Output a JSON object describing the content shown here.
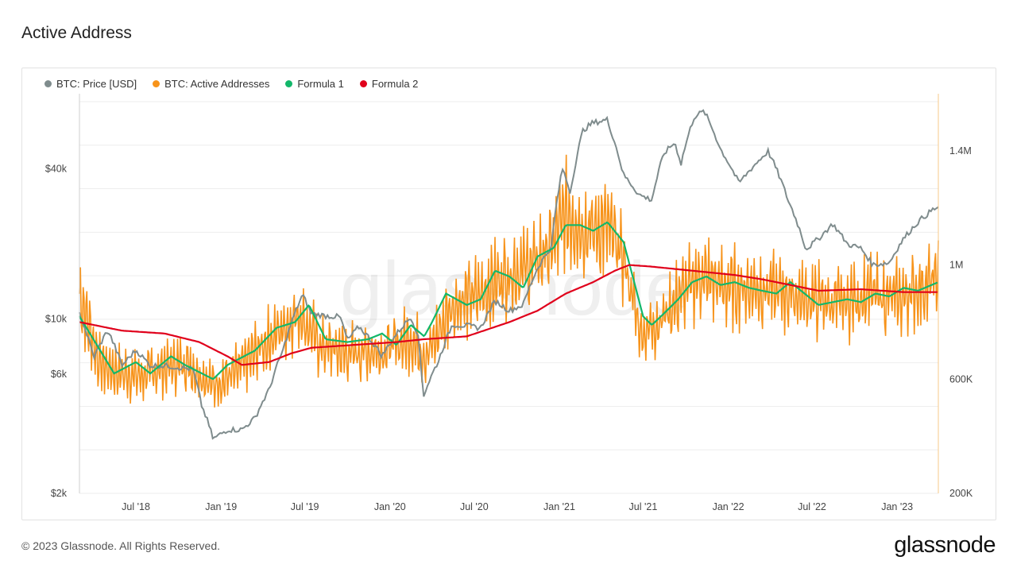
{
  "page": {
    "title": "Active Address",
    "footer": "© 2023 Glassnode. All Rights Reserved.",
    "brand": "glassnode",
    "watermark": "glassnode"
  },
  "colors": {
    "price": "#7f8c8d",
    "active": "#f7931a",
    "formula1": "#12b76a",
    "formula2": "#e0001b",
    "grid": "#eeeeee",
    "axis": "#cfcfcf",
    "right_axis_line": "#f7c98a"
  },
  "chart_data": {
    "type": "line",
    "title": "Active Address",
    "x_range": [
      "2018-03-01",
      "2023-03-31"
    ],
    "x_ticks": [
      "Jul '18",
      "Jan '19",
      "Jul '19",
      "Jan '20",
      "Jul '20",
      "Jan '21",
      "Jul '21",
      "Jan '22",
      "Jul '22",
      "Jan '23"
    ],
    "x_tick_dates": [
      "2018-07-01",
      "2019-01-01",
      "2019-07-01",
      "2020-01-01",
      "2020-07-01",
      "2021-01-01",
      "2021-07-01",
      "2022-01-01",
      "2022-07-01",
      "2023-01-01"
    ],
    "y_left": {
      "scale": "log",
      "range": [
        2000,
        80000
      ],
      "ticks": [
        2000,
        6000,
        10000,
        40000
      ],
      "tick_labels": [
        "$2k",
        "$6k",
        "$10k",
        "$40k"
      ]
    },
    "y_right": {
      "scale": "linear",
      "range": [
        200000,
        1600000
      ],
      "ticks": [
        200000,
        600000,
        1000000,
        1400000
      ],
      "tick_labels": [
        "200K",
        "600K",
        "1M",
        "1.4M"
      ]
    },
    "series": [
      {
        "name": "BTC: Price [USD]",
        "axis": "left",
        "key": "price",
        "points": [
          [
            "2018-03-01",
            10500
          ],
          [
            "2018-04-01",
            7000
          ],
          [
            "2018-05-01",
            9000
          ],
          [
            "2018-06-01",
            6500
          ],
          [
            "2018-07-01",
            7500
          ],
          [
            "2018-08-01",
            6500
          ],
          [
            "2018-09-01",
            6500
          ],
          [
            "2018-10-01",
            6400
          ],
          [
            "2018-11-01",
            6300
          ],
          [
            "2018-11-20",
            4500
          ],
          [
            "2018-12-15",
            3300
          ],
          [
            "2019-01-15",
            3600
          ],
          [
            "2019-02-15",
            3600
          ],
          [
            "2019-03-15",
            4000
          ],
          [
            "2019-04-15",
            5200
          ],
          [
            "2019-05-15",
            7500
          ],
          [
            "2019-06-26",
            12500
          ],
          [
            "2019-07-15",
            10500
          ],
          [
            "2019-08-15",
            10300
          ],
          [
            "2019-09-15",
            10200
          ],
          [
            "2019-10-01",
            8200
          ],
          [
            "2019-10-26",
            9300
          ],
          [
            "2019-11-15",
            8500
          ],
          [
            "2019-12-15",
            7100
          ],
          [
            "2020-01-15",
            8700
          ],
          [
            "2020-02-15",
            10200
          ],
          [
            "2020-03-01",
            8700
          ],
          [
            "2020-03-13",
            4900
          ],
          [
            "2020-04-15",
            6800
          ],
          [
            "2020-05-15",
            9500
          ],
          [
            "2020-06-15",
            9400
          ],
          [
            "2020-07-15",
            9200
          ],
          [
            "2020-08-15",
            11800
          ],
          [
            "2020-09-15",
            10800
          ],
          [
            "2020-10-15",
            11400
          ],
          [
            "2020-11-15",
            16000
          ],
          [
            "2020-12-15",
            19500
          ],
          [
            "2021-01-08",
            40000
          ],
          [
            "2021-01-25",
            32000
          ],
          [
            "2021-02-21",
            57000
          ],
          [
            "2021-03-13",
            61000
          ],
          [
            "2021-04-14",
            63000
          ],
          [
            "2021-05-19",
            38000
          ],
          [
            "2021-06-22",
            31500
          ],
          [
            "2021-07-20",
            30000
          ],
          [
            "2021-08-15",
            46000
          ],
          [
            "2021-09-07",
            51000
          ],
          [
            "2021-09-21",
            42000
          ],
          [
            "2021-10-20",
            65000
          ],
          [
            "2021-11-10",
            68000
          ],
          [
            "2021-12-15",
            48000
          ],
          [
            "2022-01-24",
            35000
          ],
          [
            "2022-03-28",
            47000
          ],
          [
            "2022-05-10",
            30000
          ],
          [
            "2022-06-18",
            19000
          ],
          [
            "2022-07-15",
            21000
          ],
          [
            "2022-08-15",
            24000
          ],
          [
            "2022-09-15",
            20000
          ],
          [
            "2022-10-15",
            19200
          ],
          [
            "2022-11-09",
            16500
          ],
          [
            "2022-12-15",
            16800
          ],
          [
            "2023-01-15",
            21000
          ],
          [
            "2023-02-15",
            24500
          ],
          [
            "2023-03-20",
            27500
          ],
          [
            "2023-03-31",
            28000
          ]
        ]
      },
      {
        "name": "BTC: Active Addresses",
        "axis": "right",
        "key": "active",
        "points": [
          [
            "2018-03-01",
            900000
          ],
          [
            "2018-04-15",
            650000
          ],
          [
            "2018-06-01",
            620000
          ],
          [
            "2018-07-15",
            610000
          ],
          [
            "2018-09-01",
            640000
          ],
          [
            "2018-10-15",
            660000
          ],
          [
            "2018-12-15",
            580000
          ],
          [
            "2019-02-01",
            620000
          ],
          [
            "2019-04-01",
            720000
          ],
          [
            "2019-06-20",
            830000
          ],
          [
            "2019-08-01",
            720000
          ],
          [
            "2019-10-01",
            690000
          ],
          [
            "2019-12-15",
            700000
          ],
          [
            "2020-02-15",
            740000
          ],
          [
            "2020-03-20",
            680000
          ],
          [
            "2020-05-15",
            860000
          ],
          [
            "2020-07-15",
            900000
          ],
          [
            "2020-09-01",
            960000
          ],
          [
            "2020-11-01",
            1000000
          ],
          [
            "2020-12-15",
            1060000
          ],
          [
            "2021-01-15",
            1180000
          ],
          [
            "2021-03-01",
            1120000
          ],
          [
            "2021-04-15",
            1130000
          ],
          [
            "2021-05-20",
            1020000
          ],
          [
            "2021-06-26",
            760000
          ],
          [
            "2021-08-01",
            800000
          ],
          [
            "2021-09-15",
            880000
          ],
          [
            "2021-11-01",
            960000
          ],
          [
            "2022-01-01",
            920000
          ],
          [
            "2022-03-01",
            920000
          ],
          [
            "2022-05-01",
            900000
          ],
          [
            "2022-07-01",
            880000
          ],
          [
            "2022-09-01",
            860000
          ],
          [
            "2022-11-01",
            900000
          ],
          [
            "2023-01-01",
            880000
          ],
          [
            "2023-03-31",
            950000
          ]
        ]
      },
      {
        "name": "Formula 1",
        "axis": "right",
        "key": "formula1",
        "points": [
          [
            "2018-03-01",
            820000
          ],
          [
            "2018-04-15",
            700000
          ],
          [
            "2018-05-15",
            620000
          ],
          [
            "2018-07-01",
            660000
          ],
          [
            "2018-08-01",
            620000
          ],
          [
            "2018-09-15",
            680000
          ],
          [
            "2018-10-15",
            650000
          ],
          [
            "2018-12-15",
            600000
          ],
          [
            "2019-01-15",
            650000
          ],
          [
            "2019-03-15",
            700000
          ],
          [
            "2019-05-01",
            780000
          ],
          [
            "2019-06-10",
            800000
          ],
          [
            "2019-07-10",
            860000
          ],
          [
            "2019-08-15",
            740000
          ],
          [
            "2019-10-01",
            730000
          ],
          [
            "2019-11-15",
            740000
          ],
          [
            "2019-12-15",
            760000
          ],
          [
            "2020-01-15",
            720000
          ],
          [
            "2020-02-15",
            790000
          ],
          [
            "2020-03-15",
            750000
          ],
          [
            "2020-04-01",
            800000
          ],
          [
            "2020-05-01",
            900000
          ],
          [
            "2020-06-15",
            860000
          ],
          [
            "2020-07-15",
            880000
          ],
          [
            "2020-08-15",
            980000
          ],
          [
            "2020-09-15",
            960000
          ],
          [
            "2020-10-15",
            920000
          ],
          [
            "2020-11-15",
            1030000
          ],
          [
            "2020-12-20",
            1060000
          ],
          [
            "2021-01-15",
            1140000
          ],
          [
            "2021-02-15",
            1140000
          ],
          [
            "2021-03-15",
            1120000
          ],
          [
            "2021-04-15",
            1150000
          ],
          [
            "2021-05-20",
            1080000
          ],
          [
            "2021-06-15",
            920000
          ],
          [
            "2021-07-01",
            820000
          ],
          [
            "2021-07-20",
            790000
          ],
          [
            "2021-08-15",
            830000
          ],
          [
            "2021-09-15",
            880000
          ],
          [
            "2021-10-15",
            940000
          ],
          [
            "2021-11-15",
            960000
          ],
          [
            "2021-12-15",
            930000
          ],
          [
            "2022-01-15",
            940000
          ],
          [
            "2022-02-15",
            920000
          ],
          [
            "2022-03-15",
            910000
          ],
          [
            "2022-04-15",
            900000
          ],
          [
            "2022-05-15",
            940000
          ],
          [
            "2022-06-15",
            900000
          ],
          [
            "2022-07-15",
            860000
          ],
          [
            "2022-08-15",
            870000
          ],
          [
            "2022-09-15",
            880000
          ],
          [
            "2022-10-15",
            870000
          ],
          [
            "2022-11-15",
            900000
          ],
          [
            "2022-12-15",
            890000
          ],
          [
            "2023-01-15",
            920000
          ],
          [
            "2023-02-15",
            910000
          ],
          [
            "2023-03-31",
            940000
          ]
        ]
      },
      {
        "name": "Formula 2",
        "axis": "right",
        "key": "formula2",
        "points": [
          [
            "2018-03-01",
            800000
          ],
          [
            "2018-06-01",
            770000
          ],
          [
            "2018-09-01",
            760000
          ],
          [
            "2018-11-15",
            730000
          ],
          [
            "2019-01-15",
            680000
          ],
          [
            "2019-02-15",
            650000
          ],
          [
            "2019-04-15",
            660000
          ],
          [
            "2019-06-01",
            690000
          ],
          [
            "2019-07-15",
            710000
          ],
          [
            "2019-10-15",
            720000
          ],
          [
            "2020-01-15",
            730000
          ],
          [
            "2020-03-15",
            740000
          ],
          [
            "2020-06-15",
            750000
          ],
          [
            "2020-09-15",
            800000
          ],
          [
            "2020-11-15",
            840000
          ],
          [
            "2021-01-15",
            900000
          ],
          [
            "2021-03-15",
            940000
          ],
          [
            "2021-05-01",
            980000
          ],
          [
            "2021-06-01",
            1000000
          ],
          [
            "2021-07-15",
            995000
          ],
          [
            "2021-09-15",
            985000
          ],
          [
            "2021-11-15",
            975000
          ],
          [
            "2022-01-15",
            965000
          ],
          [
            "2022-03-15",
            950000
          ],
          [
            "2022-05-15",
            930000
          ],
          [
            "2022-07-15",
            910000
          ],
          [
            "2022-10-15",
            915000
          ],
          [
            "2023-01-15",
            905000
          ],
          [
            "2023-03-31",
            905000
          ]
        ]
      }
    ]
  }
}
